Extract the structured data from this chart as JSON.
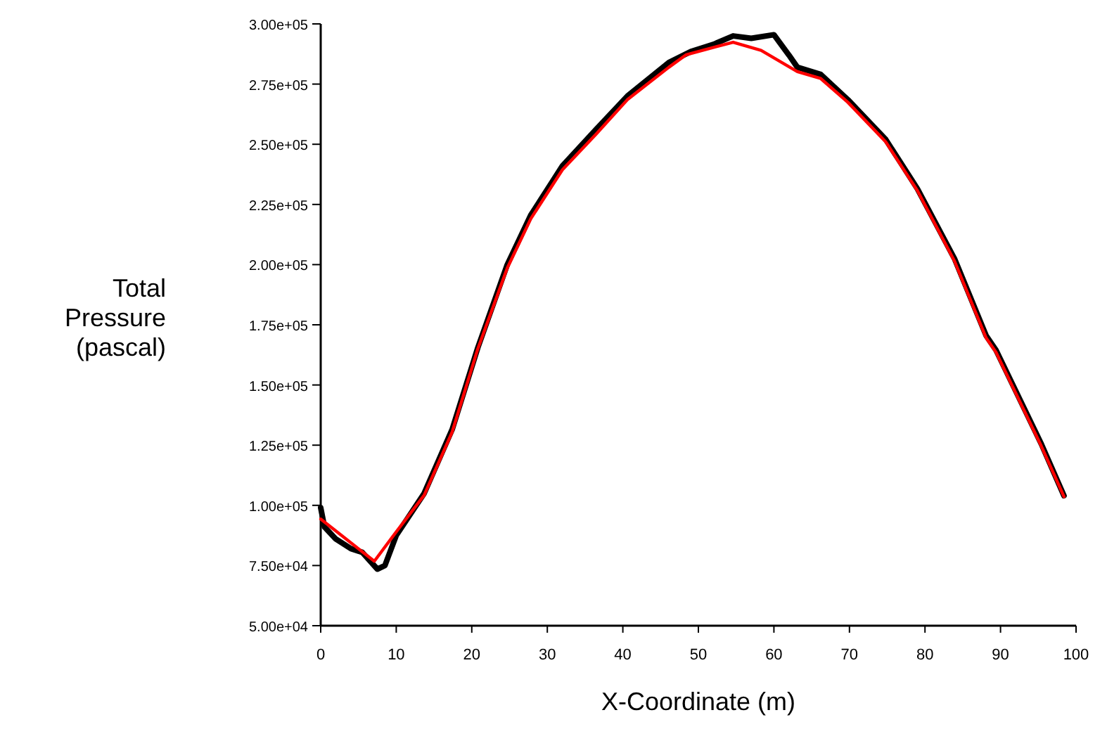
{
  "chart_data": {
    "type": "line",
    "xlabel": "X-Coordinate (m)",
    "ylabel": "Total Pressure (pascal)",
    "xlim": [
      0,
      100
    ],
    "xticks": [
      0,
      10,
      20,
      30,
      40,
      50,
      60,
      70,
      80,
      90,
      100
    ],
    "ylim": [
      50000,
      300000
    ],
    "yticks": [
      {
        "value": 50000,
        "label": "5.00e+04"
      },
      {
        "value": 75000,
        "label": "7.50e+04"
      },
      {
        "value": 100000,
        "label": "1.00e+05"
      },
      {
        "value": 125000,
        "label": "1.25e+05"
      },
      {
        "value": 150000,
        "label": "1.50e+05"
      },
      {
        "value": 175000,
        "label": "1.75e+05"
      },
      {
        "value": 200000,
        "label": "2.00e+05"
      },
      {
        "value": 225000,
        "label": "2.25e+05"
      },
      {
        "value": 250000,
        "label": "2.50e+05"
      },
      {
        "value": 275000,
        "label": "2.75e+05"
      },
      {
        "value": 300000,
        "label": "3.00e+05"
      }
    ],
    "grid": false,
    "marker": "none",
    "line_style": "solid",
    "series": [
      {
        "color": "#000000",
        "x": [
          0,
          0.5,
          2,
          4,
          5.5,
          7.5,
          8.5,
          10,
          13.7,
          17.4,
          20.8,
          24.7,
          27.8,
          32,
          36.4,
          40.6,
          46.1,
          49,
          52,
          54.6,
          57,
          60,
          62,
          63.1,
          66.2,
          69.8,
          74.8,
          79,
          83.9,
          88.1,
          89.4,
          95.4,
          98.4
        ],
        "values": [
          99000,
          91000,
          86000,
          82000,
          80500,
          73500,
          75000,
          87500,
          105000,
          131500,
          165500,
          200000,
          220500,
          241000,
          256000,
          270000,
          284000,
          288500,
          291500,
          295000,
          294000,
          295500,
          287000,
          282000,
          279000,
          268500,
          252000,
          231500,
          202500,
          170500,
          164500,
          125500,
          104000
        ]
      },
      {
        "color": "#ff0000",
        "x": [
          0,
          7.1,
          10,
          13.7,
          17.4,
          20.8,
          24.7,
          27.8,
          32,
          36.4,
          40.6,
          46.1,
          48.4,
          54.6,
          58.3,
          63.1,
          66.2,
          69.8,
          74.8,
          79,
          83.9,
          88.1,
          89.4,
          95.4,
          98.4
        ],
        "values": [
          94300,
          76800,
          89000,
          104200,
          130400,
          165000,
          198600,
          219000,
          239400,
          254000,
          268500,
          282000,
          287200,
          292400,
          289000,
          280200,
          277300,
          267400,
          251000,
          230700,
          201500,
          169500,
          163600,
          124600,
          103600
        ]
      }
    ]
  }
}
